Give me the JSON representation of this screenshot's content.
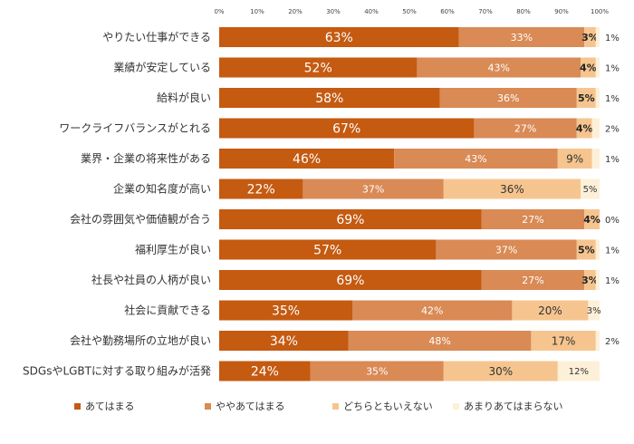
{
  "chart_data": {
    "type": "bar",
    "orientation": "horizontal",
    "stacked": true,
    "categories": [
      "やりたい仕事ができる",
      "業績が安定している",
      "給料が良い",
      "ワークライフバランスがとれる",
      "業界・企業の将来性がある",
      "企業の知名度が高い",
      "会社の雰囲気や価値観が合う",
      "福利厚生が良い",
      "社長や社員の人柄が良い",
      "社会に貢献できる",
      "会社や勤務場所の立地が良い",
      "SDGsやLGBTに対する取り組みが活発"
    ],
    "series": [
      {
        "name": "あてはまる",
        "color": "#c55a11",
        "values": [
          63,
          52,
          58,
          67,
          46,
          22,
          69,
          57,
          69,
          35,
          34,
          24
        ]
      },
      {
        "name": "ややあてはまる",
        "color": "#d98a55",
        "values": [
          33,
          43,
          36,
          27,
          43,
          37,
          27,
          37,
          27,
          42,
          48,
          35
        ]
      },
      {
        "name": "どちらともいえない",
        "color": "#f6c58f",
        "values": [
          3,
          4,
          5,
          4,
          9,
          36,
          4,
          5,
          3,
          20,
          17,
          30
        ]
      },
      {
        "name": "あまりあてはまらない",
        "color": "#fdf0d8",
        "values": [
          1,
          1,
          1,
          2,
          1,
          5,
          0,
          1,
          1,
          3,
          2,
          12
        ]
      }
    ],
    "labels": [
      [
        "63%",
        "33%",
        "3%",
        "1%"
      ],
      [
        "52%",
        "43%",
        "4%",
        "1%"
      ],
      [
        "58%",
        "36%",
        "5%",
        "1%"
      ],
      [
        "67%",
        "27%",
        "4%",
        "2%"
      ],
      [
        "46%",
        "43%",
        "9%",
        "1%"
      ],
      [
        "22%",
        "37%",
        "36%",
        "5%"
      ],
      [
        "69%",
        "27%",
        "4%",
        "0%"
      ],
      [
        "57%",
        "37%",
        "5%",
        "1%"
      ],
      [
        "69%",
        "27%",
        "3%",
        "1%"
      ],
      [
        "35%",
        "42%",
        "20%",
        "3%"
      ],
      [
        "34%",
        "48%",
        "17%",
        "2%"
      ],
      [
        "24%",
        "35%",
        "30%",
        "12%"
      ]
    ],
    "outside_label_series": 3,
    "outside_label_rows": [
      0,
      1,
      2,
      3,
      4,
      6,
      7,
      8,
      10
    ],
    "x_ticks": [
      "0%",
      "10%",
      "20%",
      "30%",
      "40%",
      "50%",
      "60%",
      "70%",
      "80%",
      "90%",
      "100%"
    ],
    "xlim": [
      0,
      100
    ],
    "grid": false,
    "legend_position": "bottom"
  }
}
